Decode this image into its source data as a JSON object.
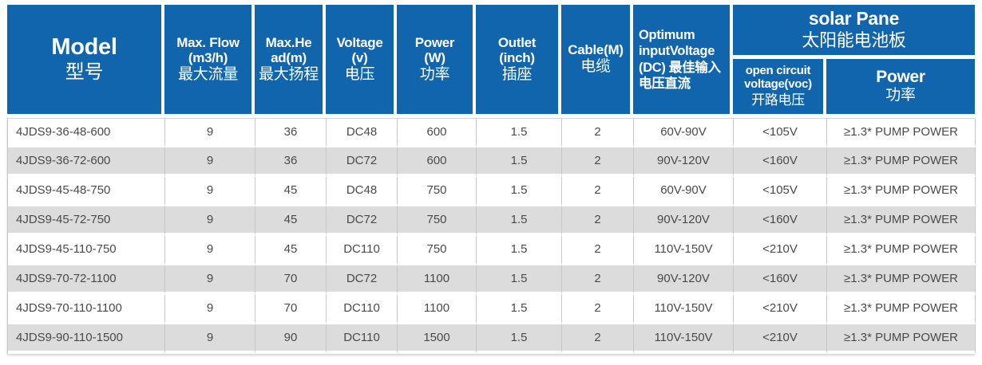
{
  "colors": {
    "header_blue": "#1165ac",
    "row_alt_gray": "#dcdcdc",
    "divider_gray": "#c8c8c8",
    "body_text": "#4a4a4a"
  },
  "table": {
    "header": {
      "model_en": "Model",
      "model_zh": "型号",
      "flow_en": "Max. Flow\n(m3/h)",
      "flow_zh": "最大流量",
      "head_en": "Max.He\nad(m)",
      "head_zh": "最大扬程",
      "voltage_en": "Voltage\n(v)",
      "voltage_zh": "电压",
      "power_en": "Power\n(W)",
      "power_zh": "功率",
      "outlet_en": "Outlet\n(inch)",
      "outlet_zh": "插座",
      "cable_en": "Cable(M)",
      "cable_zh": "电缆",
      "optimum_mixed": "Optimum inputVoltage (DC) 最佳输入电压直流",
      "solar_group_en": "solar Pane",
      "solar_group_zh": "太阳能电池板",
      "voc_en": "open circuit\nvoltage(voc)",
      "voc_zh": "开路电压",
      "solar_power_en": "Power",
      "solar_power_zh": "功率"
    },
    "rows": [
      [
        "4JDS9-36-48-600",
        "9",
        "36",
        "DC48",
        "600",
        "1.5",
        "2",
        "60V-90V",
        "<105V",
        "≥1.3* PUMP POWER"
      ],
      [
        "4JDS9-36-72-600",
        "9",
        "36",
        "DC72",
        "600",
        "1.5",
        "2",
        "90V-120V",
        "<160V",
        "≥1.3* PUMP POWER"
      ],
      [
        "4JDS9-45-48-750",
        "9",
        "45",
        "DC48",
        "750",
        "1.5",
        "2",
        "60V-90V",
        "<105V",
        "≥1.3* PUMP POWER"
      ],
      [
        "4JDS9-45-72-750",
        "9",
        "45",
        "DC72",
        "750",
        "1.5",
        "2",
        "90V-120V",
        "<160V",
        "≥1.3* PUMP POWER"
      ],
      [
        "4JDS9-45-110-750",
        "9",
        "45",
        "DC110",
        "750",
        "1.5",
        "2",
        "110V-150V",
        "<210V",
        "≥1.3* PUMP POWER"
      ],
      [
        "4JDS9-70-72-1100",
        "9",
        "70",
        "DC72",
        "1100",
        "1.5",
        "2",
        "90V-120V",
        "<160V",
        "≥1.3* PUMP POWER"
      ],
      [
        "4JDS9-70-110-1100",
        "9",
        "70",
        "DC110",
        "1100",
        "1.5",
        "2",
        "110V-150V",
        "<210V",
        "≥1.3* PUMP POWER"
      ],
      [
        "4JDS9-90-110-1500",
        "9",
        "90",
        "DC110",
        "1500",
        "1.5",
        "2",
        "110V-150V",
        "<210V",
        "≥1.3* PUMP POWER"
      ]
    ]
  }
}
